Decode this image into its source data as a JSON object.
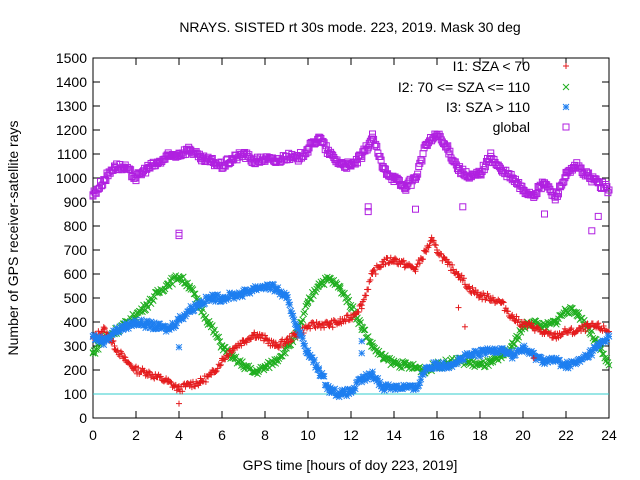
{
  "chart_data": {
    "type": "scatter",
    "title": "NRAYS. SISTED rt 30s mode. 223, 2019. Mask 30 deg",
    "xlabel": "GPS time [hours of doy 223, 2019]",
    "ylabel": "Number of GPS receiver-satellite rays",
    "xlim": [
      0,
      24
    ],
    "ylim": [
      0,
      1500
    ],
    "x_ticks": [
      "0",
      "2",
      "4",
      "6",
      "8",
      "10",
      "12",
      "14",
      "16",
      "18",
      "20",
      "22",
      "24"
    ],
    "y_ticks": [
      "0",
      "100",
      "200",
      "300",
      "400",
      "500",
      "600",
      "700",
      "800",
      "900",
      "1000",
      "1100",
      "1200",
      "1300",
      "1400",
      "1500"
    ],
    "reference_line": {
      "y": 100,
      "color": "#33cccc"
    },
    "legend_position": "top-right",
    "series": [
      {
        "name": "I1: SZA < 70",
        "marker": "plus",
        "color": "#e41a1c",
        "x": [
          0,
          0.5,
          1,
          1.5,
          2,
          2.5,
          3,
          3.5,
          4,
          4.5,
          5,
          5.5,
          6,
          6.5,
          7,
          7.5,
          8,
          8.5,
          9,
          9.5,
          10,
          10.5,
          11,
          11.5,
          12,
          12.5,
          13,
          13.5,
          14,
          14.5,
          15,
          15.5,
          15.75,
          16,
          16.5,
          17,
          17.5,
          18,
          18.5,
          19,
          19.5,
          20,
          20.5,
          21,
          21.5,
          22,
          22.5,
          23,
          23.5,
          24
        ],
        "values": [
          330,
          370,
          300,
          240,
          200,
          190,
          170,
          150,
          120,
          140,
          150,
          180,
          240,
          290,
          320,
          350,
          330,
          300,
          320,
          350,
          380,
          390,
          390,
          400,
          420,
          470,
          600,
          650,
          660,
          640,
          620,
          700,
          740,
          700,
          640,
          600,
          540,
          510,
          500,
          480,
          420,
          390,
          380,
          350,
          340,
          360,
          360,
          380,
          380,
          360
        ]
      },
      {
        "name": "I2: 70 <= SZA <= 110",
        "marker": "cross",
        "color": "#1fae1f",
        "x": [
          0,
          0.5,
          1,
          1.5,
          2,
          2.5,
          3,
          3.5,
          4,
          4.5,
          5,
          5.5,
          6,
          6.5,
          7,
          7.5,
          8,
          8.5,
          9,
          9.5,
          10,
          10.5,
          11,
          11.5,
          12,
          12.5,
          13,
          13.5,
          14,
          14.5,
          15,
          15.5,
          16,
          16.5,
          17,
          17.5,
          18,
          18.5,
          19,
          19.5,
          20,
          20.5,
          21,
          21.5,
          22,
          22.5,
          23,
          23.5,
          24
        ],
        "values": [
          270,
          330,
          360,
          390,
          430,
          470,
          520,
          560,
          590,
          550,
          460,
          380,
          300,
          250,
          220,
          190,
          210,
          240,
          290,
          350,
          480,
          560,
          580,
          540,
          470,
          380,
          300,
          250,
          230,
          220,
          210,
          200,
          220,
          230,
          240,
          230,
          220,
          230,
          250,
          300,
          380,
          400,
          380,
          400,
          450,
          440,
          380,
          300,
          220
        ]
      },
      {
        "name": "I3: SZA > 110",
        "marker": "star",
        "color": "#1e7ff0",
        "x": [
          0,
          0.5,
          1,
          1.5,
          2,
          2.5,
          3,
          3.5,
          4,
          4.5,
          5,
          5.5,
          6,
          6.5,
          7,
          7.5,
          8,
          8.5,
          9,
          9.5,
          10,
          10.5,
          11,
          11.5,
          12,
          12.5,
          13,
          13.5,
          14,
          14.5,
          15,
          15.5,
          16,
          16.5,
          17,
          17.5,
          18,
          18.5,
          19,
          19.5,
          20,
          20.5,
          21,
          21.5,
          22,
          22.5,
          23,
          23.5,
          24
        ],
        "values": [
          340,
          320,
          360,
          380,
          400,
          390,
          380,
          370,
          410,
          450,
          480,
          500,
          500,
          510,
          520,
          540,
          550,
          540,
          500,
          380,
          270,
          200,
          120,
          100,
          110,
          160,
          180,
          130,
          130,
          130,
          120,
          210,
          220,
          220,
          240,
          260,
          270,
          280,
          290,
          260,
          290,
          260,
          240,
          240,
          220,
          230,
          260,
          300,
          340
        ]
      },
      {
        "name": "global",
        "marker": "square",
        "color": "#b020e0",
        "x": [
          0,
          0.5,
          1,
          1.5,
          2,
          2.5,
          3,
          3.5,
          4,
          4.5,
          5,
          5.5,
          6,
          6.5,
          7,
          7.5,
          8,
          8.5,
          9,
          9.5,
          10,
          10.5,
          11,
          11.5,
          12,
          12.5,
          13,
          13.5,
          14,
          14.5,
          15,
          15.5,
          16,
          16.5,
          17,
          17.5,
          18,
          18.5,
          19,
          19.5,
          20,
          20.5,
          21,
          21.5,
          22,
          22.5,
          23,
          23.5,
          24
        ],
        "values": [
          930,
          990,
          1050,
          1040,
          1000,
          1040,
          1060,
          1090,
          1100,
          1120,
          1080,
          1070,
          1050,
          1080,
          1100,
          1070,
          1080,
          1070,
          1090,
          1080,
          1120,
          1170,
          1100,
          1060,
          1050,
          1090,
          1170,
          1040,
          1000,
          960,
          1000,
          1140,
          1180,
          1120,
          1040,
          1000,
          1020,
          1090,
          1030,
          1000,
          950,
          930,
          980,
          920,
          1010,
          1050,
          1010,
          980,
          950
        ]
      }
    ],
    "outliers": [
      {
        "series": 0,
        "x": 4.0,
        "y": 60
      },
      {
        "series": 2,
        "x": 4.0,
        "y": 295
      },
      {
        "series": 3,
        "x": 4.0,
        "y": 770
      },
      {
        "series": 3,
        "x": 4.0,
        "y": 760
      },
      {
        "series": 3,
        "x": 12.8,
        "y": 880
      },
      {
        "series": 3,
        "x": 12.8,
        "y": 860
      },
      {
        "series": 3,
        "x": 15.0,
        "y": 870
      },
      {
        "series": 3,
        "x": 17.2,
        "y": 880
      },
      {
        "series": 3,
        "x": 21.0,
        "y": 850
      },
      {
        "series": 3,
        "x": 23.2,
        "y": 780
      },
      {
        "series": 3,
        "x": 23.5,
        "y": 840
      },
      {
        "series": 2,
        "x": 12.5,
        "y": 270
      },
      {
        "series": 2,
        "x": 12.5,
        "y": 320
      },
      {
        "series": 0,
        "x": 17.3,
        "y": 380
      },
      {
        "series": 0,
        "x": 17.0,
        "y": 460
      },
      {
        "series": 0,
        "x": 20.5,
        "y": 250
      }
    ]
  }
}
